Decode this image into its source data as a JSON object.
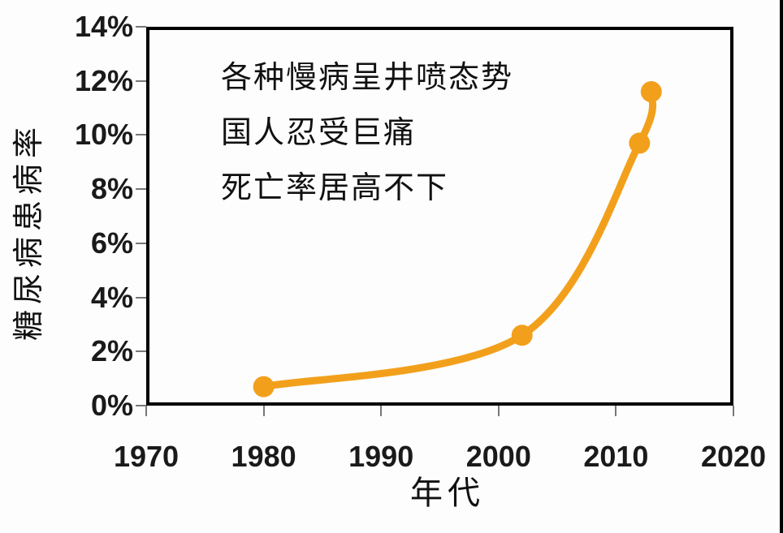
{
  "page": {
    "background": "#fdfdfd",
    "edge_bar_color": "#000000"
  },
  "chart_data": {
    "type": "line",
    "title": "",
    "xlabel": "年代",
    "ylabel": "糖尿病患病率",
    "xlim": [
      1970,
      2020
    ],
    "ylim": [
      0,
      14
    ],
    "x_ticks": [
      "1970",
      "1980",
      "1990",
      "2000",
      "2010",
      "2020"
    ],
    "y_ticks_top_to_bottom": [
      "14%",
      "12%",
      "10%",
      "8%",
      "6%",
      "4%",
      "2%",
      "0%"
    ],
    "grid": false,
    "legend_position": "none",
    "series": [
      {
        "name": "糖尿病患病率",
        "x": [
          1980,
          2002,
          2012,
          2013
        ],
        "values": [
          0.7,
          2.6,
          9.7,
          11.6
        ],
        "unit": "%",
        "line_color": "#F2A01C",
        "marker": "circle",
        "smooth": true
      }
    ],
    "annotations": [
      "各种慢病呈井喷态势",
      "国人忍受巨痛",
      "死亡率居高不下"
    ]
  }
}
